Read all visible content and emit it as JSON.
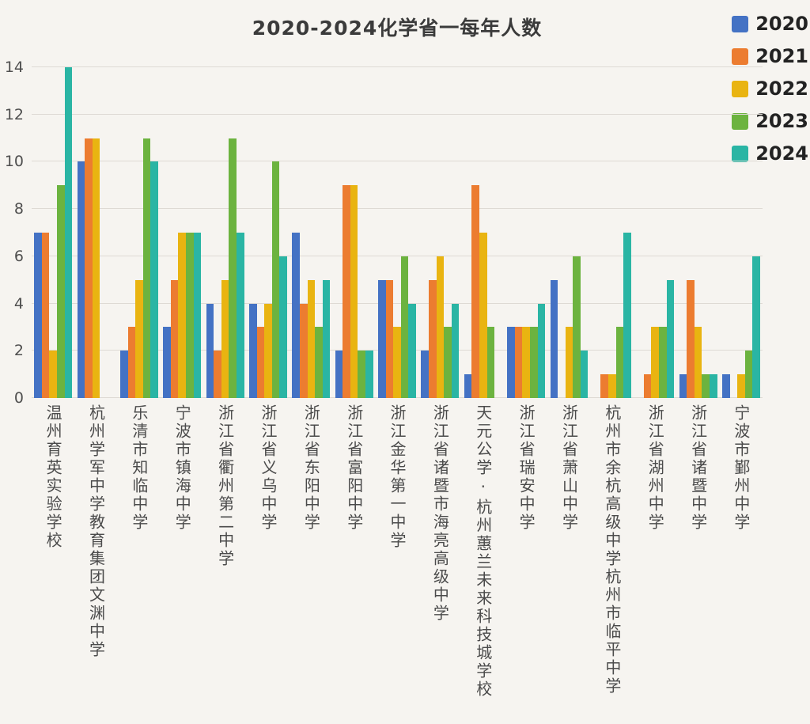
{
  "chart_data": {
    "type": "bar",
    "title": "2020-2024化学省一每年人数",
    "xlabel": "",
    "ylabel": "",
    "ylim": [
      0,
      14
    ],
    "yticks": [
      0,
      2,
      4,
      6,
      8,
      10,
      12,
      14
    ],
    "grid": true,
    "legend_position": "top-right",
    "categories": [
      "温州育英实验学校",
      "杭州学军中学教育集团文渊中学",
      "乐清市知临中学",
      "宁波市镇海中学",
      "浙江省衢州第二中学",
      "浙江省义乌中学",
      "浙江省东阳中学",
      "浙江省富阳中学",
      "浙江金华第一中学",
      "浙江省诸暨市海亮高级中学",
      "天元公学·杭州蕙兰未来科技城学校",
      "浙江省瑞安中学",
      "浙江省萧山中学",
      "杭州市余杭高级中学杭州市临平中学",
      "浙江省湖州中学",
      "浙江省诸暨中学",
      "宁波市鄞州中学"
    ],
    "series": [
      {
        "name": "2020",
        "color": "#4472c4",
        "values": [
          7,
          10,
          2,
          3,
          4,
          4,
          7,
          2,
          5,
          2,
          1,
          3,
          5,
          0,
          0,
          1,
          1
        ]
      },
      {
        "name": "2021",
        "color": "#ec7c30",
        "values": [
          7,
          11,
          3,
          5,
          2,
          3,
          4,
          9,
          5,
          5,
          9,
          3,
          0,
          1,
          1,
          5,
          0
        ]
      },
      {
        "name": "2022",
        "color": "#e9b411",
        "values": [
          2,
          11,
          5,
          7,
          5,
          4,
          5,
          9,
          3,
          6,
          7,
          3,
          3,
          1,
          3,
          3,
          1
        ]
      },
      {
        "name": "2023",
        "color": "#6cb33f",
        "values": [
          9,
          0,
          11,
          7,
          11,
          10,
          3,
          2,
          6,
          3,
          3,
          3,
          6,
          3,
          3,
          1,
          2
        ]
      },
      {
        "name": "2024",
        "color": "#2ab5a4",
        "values": [
          14,
          0,
          10,
          7,
          7,
          6,
          5,
          2,
          4,
          4,
          0,
          4,
          2,
          7,
          5,
          1,
          6
        ]
      }
    ],
    "colors": {
      "background": "#f6f4f0",
      "gridline": "#dedad4",
      "title_text": "#3b3b3b",
      "axis_text": "#4f4f4f"
    }
  }
}
